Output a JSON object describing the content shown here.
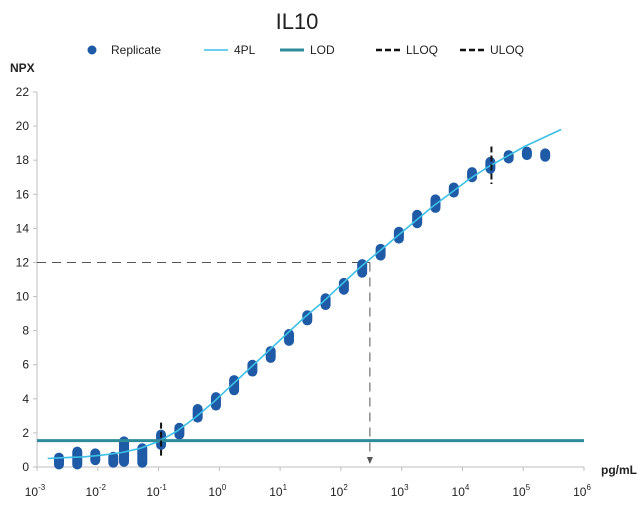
{
  "chart_data": {
    "type": "scatter",
    "title": "IL10",
    "xlabel": "pg/mL",
    "ylabel": "NPX",
    "x_scale": "log10",
    "xlim": [
      0.001,
      1000000
    ],
    "ylim": [
      0,
      22
    ],
    "x_ticks": [
      {
        "base": "10",
        "exp": "-3",
        "value": 0.001
      },
      {
        "base": "10",
        "exp": "-2",
        "value": 0.01
      },
      {
        "base": "10",
        "exp": "-1",
        "value": 0.1
      },
      {
        "base": "10",
        "exp": "0",
        "value": 1
      },
      {
        "base": "10",
        "exp": "1",
        "value": 10
      },
      {
        "base": "10",
        "exp": "2",
        "value": 100
      },
      {
        "base": "10",
        "exp": "3",
        "value": 1000
      },
      {
        "base": "10",
        "exp": "4",
        "value": 10000
      },
      {
        "base": "10",
        "exp": "5",
        "value": 100000
      },
      {
        "base": "10",
        "exp": "6",
        "value": 1000000
      }
    ],
    "y_ticks": [
      "0",
      "2",
      "4",
      "6",
      "8",
      "10",
      "12",
      "14",
      "16",
      "18",
      "20",
      "22"
    ],
    "legend": {
      "position": "top",
      "items": [
        {
          "label": "Replicate",
          "kind": "marker",
          "color": "#1f5aa6"
        },
        {
          "label": "4PL",
          "kind": "line",
          "color": "#3cc0e6"
        },
        {
          "label": "LOD",
          "kind": "line",
          "color": "#2e8b99"
        },
        {
          "label": "LLOQ",
          "kind": "dash",
          "color": "#111111"
        },
        {
          "label": "ULOQ",
          "kind": "dash",
          "color": "#111111"
        }
      ]
    },
    "replicates": [
      {
        "x": 0.0023,
        "y_min": 0.15,
        "y_max": 0.55
      },
      {
        "x": 0.0046,
        "y_min": 0.15,
        "y_max": 0.9
      },
      {
        "x": 0.0091,
        "y_min": 0.4,
        "y_max": 0.8
      },
      {
        "x": 0.018,
        "y_min": 0.25,
        "y_max": 0.6
      },
      {
        "x": 0.027,
        "y_min": 0.3,
        "y_max": 1.5
      },
      {
        "x": 0.054,
        "y_min": 0.25,
        "y_max": 1.1
      },
      {
        "x": 0.11,
        "y_min": 1.3,
        "y_max": 1.9
      },
      {
        "x": 0.22,
        "y_min": 1.9,
        "y_max": 2.3
      },
      {
        "x": 0.44,
        "y_min": 2.9,
        "y_max": 3.4
      },
      {
        "x": 0.88,
        "y_min": 3.6,
        "y_max": 4.1
      },
      {
        "x": 1.75,
        "y_min": 4.5,
        "y_max": 5.1
      },
      {
        "x": 3.5,
        "y_min": 5.6,
        "y_max": 6.0
      },
      {
        "x": 7,
        "y_min": 6.4,
        "y_max": 6.8
      },
      {
        "x": 14,
        "y_min": 7.4,
        "y_max": 7.8
      },
      {
        "x": 28,
        "y_min": 8.6,
        "y_max": 8.9
      },
      {
        "x": 56,
        "y_min": 9.5,
        "y_max": 9.9
      },
      {
        "x": 112,
        "y_min": 10.4,
        "y_max": 10.8
      },
      {
        "x": 224,
        "y_min": 11.4,
        "y_max": 11.9
      },
      {
        "x": 450,
        "y_min": 12.4,
        "y_max": 12.8
      },
      {
        "x": 900,
        "y_min": 13.4,
        "y_max": 13.8
      },
      {
        "x": 1800,
        "y_min": 14.3,
        "y_max": 14.8
      },
      {
        "x": 3600,
        "y_min": 15.2,
        "y_max": 15.7
      },
      {
        "x": 7200,
        "y_min": 16.1,
        "y_max": 16.4
      },
      {
        "x": 14400,
        "y_min": 17.0,
        "y_max": 17.3
      },
      {
        "x": 28800,
        "y_min": 17.5,
        "y_max": 17.9
      },
      {
        "x": 57600,
        "y_min": 18.1,
        "y_max": 18.3
      },
      {
        "x": 115000,
        "y_min": 18.3,
        "y_max": 18.5
      },
      {
        "x": 230000,
        "y_min": 18.2,
        "y_max": 18.4
      }
    ],
    "fit_4pl": {
      "x": [
        0.0015,
        0.003,
        0.006,
        0.012,
        0.025,
        0.05,
        0.1,
        0.2,
        0.4,
        0.8,
        1.6,
        3.2,
        6.4,
        12.8,
        25.6,
        51.2,
        102,
        205,
        410,
        820,
        1640,
        3280,
        6550,
        13100,
        26200,
        52400,
        105000,
        210000,
        420000
      ],
      "y": [
        0.5,
        0.55,
        0.6,
        0.7,
        0.85,
        1.1,
        1.5,
        2.1,
        2.9,
        3.8,
        4.8,
        5.8,
        6.8,
        7.8,
        8.8,
        9.7,
        10.7,
        11.7,
        12.6,
        13.5,
        14.4,
        15.3,
        16.1,
        16.9,
        17.6,
        18.2,
        18.8,
        19.3,
        19.8
      ]
    },
    "lod": {
      "y": 1.55
    },
    "lloq": {
      "x": 0.11,
      "y_range": [
        0.5,
        2.6
      ]
    },
    "uloq": {
      "x": 30000,
      "y_range": [
        16.6,
        18.8
      ]
    },
    "reference": {
      "x": 300,
      "y": 12
    }
  }
}
